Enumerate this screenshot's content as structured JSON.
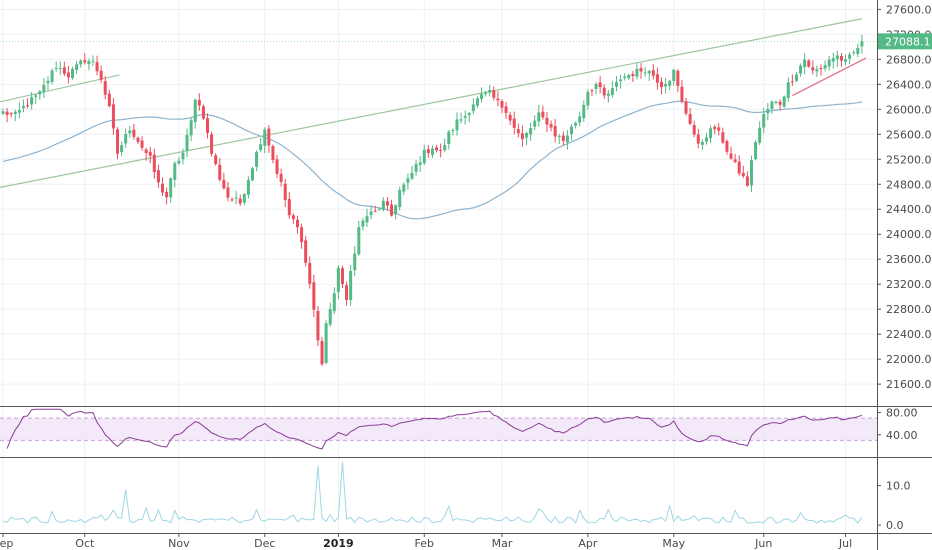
{
  "chart_data": {
    "type": "candlestick",
    "price_axis": {
      "ticks": [
        21600,
        22000,
        22400,
        22800,
        23200,
        23600,
        24000,
        24400,
        24800,
        25200,
        25600,
        26000,
        26400,
        26800,
        27200,
        27600
      ],
      "tick_labels": [
        "21600.0",
        "22000.0",
        "22400.0",
        "22800.0",
        "23200.0",
        "23600.0",
        "24000.0",
        "24400.0",
        "24800.0",
        "25200.0",
        "25600.0",
        "26000.0",
        "26400.0",
        "26800.0",
        "27200.0",
        "27600.0"
      ],
      "ylim": [
        21250,
        27750
      ]
    },
    "last_price_label": "27088.1",
    "last_price": 27088.1,
    "x_axis": {
      "labels": [
        {
          "text": "Sep",
          "i": 0,
          "bold": false
        },
        {
          "text": "Oct",
          "i": 20,
          "bold": false
        },
        {
          "text": "Nov",
          "i": 43,
          "bold": false
        },
        {
          "text": "Dec",
          "i": 64,
          "bold": false
        },
        {
          "text": "2019",
          "i": 82,
          "bold": true
        },
        {
          "text": "Feb",
          "i": 103,
          "bold": false
        },
        {
          "text": "Mar",
          "i": 122,
          "bold": false
        },
        {
          "text": "Apr",
          "i": 143,
          "bold": false
        },
        {
          "text": "May",
          "i": 164,
          "bold": false
        },
        {
          "text": "Jun",
          "i": 186,
          "bold": false
        },
        {
          "text": "Jul",
          "i": 206,
          "bold": false
        }
      ]
    },
    "keypoints": [
      [
        0,
        25950
      ],
      [
        3,
        25900
      ],
      [
        6,
        26100
      ],
      [
        9,
        26250
      ],
      [
        13,
        26700
      ],
      [
        16,
        26550
      ],
      [
        20,
        26800
      ],
      [
        22,
        26750
      ],
      [
        24,
        26500
      ],
      [
        26,
        26000
      ],
      [
        28,
        25300
      ],
      [
        31,
        25700
      ],
      [
        33,
        25500
      ],
      [
        36,
        25200
      ],
      [
        38,
        24800
      ],
      [
        40,
        24600
      ],
      [
        42,
        25100
      ],
      [
        44,
        25300
      ],
      [
        46,
        25800
      ],
      [
        47,
        26200
      ],
      [
        49,
        25900
      ],
      [
        51,
        25300
      ],
      [
        53,
        24900
      ],
      [
        55,
        24600
      ],
      [
        58,
        24500
      ],
      [
        60,
        24900
      ],
      [
        62,
        25300
      ],
      [
        64,
        25700
      ],
      [
        66,
        25200
      ],
      [
        68,
        24800
      ],
      [
        70,
        24300
      ],
      [
        72,
        24100
      ],
      [
        74,
        23600
      ],
      [
        76,
        22800
      ],
      [
        77,
        22300
      ],
      [
        78,
        21900
      ],
      [
        79,
        22600
      ],
      [
        81,
        23000
      ],
      [
        82,
        23500
      ],
      [
        84,
        22900
      ],
      [
        85,
        23400
      ],
      [
        87,
        24100
      ],
      [
        89,
        24300
      ],
      [
        91,
        24350
      ],
      [
        93,
        24500
      ],
      [
        95,
        24300
      ],
      [
        97,
        24700
      ],
      [
        99,
        24850
      ],
      [
        101,
        25100
      ],
      [
        103,
        25300
      ],
      [
        105,
        25400
      ],
      [
        107,
        25300
      ],
      [
        109,
        25600
      ],
      [
        111,
        25800
      ],
      [
        113,
        25900
      ],
      [
        115,
        26100
      ],
      [
        117,
        26200
      ],
      [
        119,
        26250
      ],
      [
        121,
        26100
      ],
      [
        123,
        26000
      ],
      [
        125,
        25700
      ],
      [
        127,
        25500
      ],
      [
        129,
        25700
      ],
      [
        131,
        25900
      ],
      [
        133,
        25800
      ],
      [
        135,
        25600
      ],
      [
        137,
        25500
      ],
      [
        139,
        25700
      ],
      [
        141,
        25900
      ],
      [
        143,
        26300
      ],
      [
        145,
        26400
      ],
      [
        147,
        26200
      ],
      [
        149,
        26300
      ],
      [
        151,
        26500
      ],
      [
        153,
        26550
      ],
      [
        155,
        26600
      ],
      [
        157,
        26650
      ],
      [
        159,
        26550
      ],
      [
        161,
        26400
      ],
      [
        163,
        26500
      ],
      [
        164,
        26600
      ],
      [
        166,
        26100
      ],
      [
        168,
        25800
      ],
      [
        170,
        25400
      ],
      [
        172,
        25600
      ],
      [
        174,
        25700
      ],
      [
        176,
        25500
      ],
      [
        178,
        25200
      ],
      [
        180,
        25000
      ],
      [
        182,
        24800
      ],
      [
        184,
        25500
      ],
      [
        186,
        25900
      ],
      [
        188,
        26100
      ],
      [
        190,
        26100
      ],
      [
        192,
        26400
      ],
      [
        194,
        26600
      ],
      [
        196,
        26800
      ],
      [
        198,
        26600
      ],
      [
        200,
        26650
      ],
      [
        202,
        26800
      ],
      [
        204,
        26850
      ],
      [
        206,
        26750
      ],
      [
        208,
        26900
      ],
      [
        210,
        27088
      ]
    ],
    "rsi": {
      "ticks": [
        40,
        80
      ],
      "tick_labels": [
        "40.00",
        "80.00"
      ],
      "band": [
        30,
        70
      ],
      "ylim": [
        0,
        90
      ]
    },
    "volume": {
      "ticks": [
        0,
        10
      ],
      "tick_labels": [
        "0.0",
        "10.0"
      ],
      "ylim": [
        -2,
        17
      ]
    },
    "colors": {
      "up": "#53b987",
      "down": "#eb4d5c",
      "ma": "#8fb3ce",
      "trendline": "#9dc79f",
      "support": "#e36d7b",
      "rsi": "#8a3c95",
      "rsi_band": "#efe0f7",
      "volume": "#9fd6e3",
      "last_price_bg": "#53b987"
    }
  }
}
